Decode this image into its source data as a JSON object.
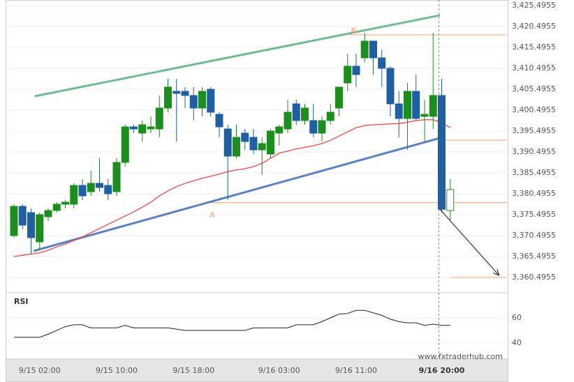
{
  "chart_data": {
    "type": "candlestick",
    "up_color": "#1b8f1b",
    "down_color": "#1f5fa3",
    "categories": [
      null,
      null,
      null,
      "9/15 02:00",
      null,
      null,
      null,
      null,
      null,
      null,
      null,
      null,
      "9/15 10:00",
      null,
      null,
      null,
      null,
      null,
      null,
      null,
      null,
      "9/15 18:00",
      null,
      null,
      null,
      null,
      null,
      null,
      null,
      null,
      null,
      "9/16 03:00",
      null,
      null,
      null,
      null,
      null,
      null,
      null,
      null,
      "9/16 11:00",
      null,
      null,
      null,
      null,
      null,
      null,
      null,
      null,
      null,
      "9/16 20:00",
      null
    ],
    "open": [
      3370.5,
      3377.5,
      3376,
      3369,
      3375,
      3376.5,
      3378,
      3378,
      3382.5,
      3381,
      3383,
      3382.5,
      3381,
      3388,
      3396.5,
      3395,
      3396,
      3396,
      3401,
      3405,
      3405,
      3404,
      3401,
      3405.5,
      3399.5,
      3396,
      3389.5,
      3395,
      3394,
      3391,
      3390,
      3395,
      3396,
      3402,
      3398,
      3398,
      3395,
      3398,
      3401,
      3407,
      3411,
      3413,
      3417,
      3413,
      3410.5,
      3402,
      3398.5,
      3405,
      3399,
      3399,
      3404,
      3376.5
    ],
    "high": [
      3378,
      3378,
      3377,
      3376,
      3377,
      3378.5,
      3379,
      3383,
      3384,
      3386,
      3389,
      3384,
      3389,
      3397,
      3397,
      3398,
      3399,
      3404,
      3408,
      3408,
      3406,
      3406,
      3406,
      3406,
      3400,
      3397,
      3397,
      3396,
      3396,
      3394,
      3396,
      3397,
      3403,
      3403,
      3402,
      3402,
      3399,
      3402,
      3406,
      3414,
      3414,
      3419,
      3417,
      3415,
      3411,
      3405,
      3407,
      3409,
      3403,
      3419,
      3408,
      3384
    ],
    "low": [
      3370,
      3372,
      3366,
      3367,
      3374,
      3376,
      3377,
      3377,
      3379,
      3380,
      3381,
      3379,
      3380,
      3387,
      3395,
      3393,
      3395,
      3394,
      3400,
      3393,
      3401,
      3398,
      3399,
      3399,
      3394,
      3379,
      3389,
      3391,
      3390,
      3385,
      3389,
      3392,
      3395,
      3397,
      3397,
      3394,
      3393,
      3397,
      3399,
      3405,
      3406,
      3412,
      3409,
      3406,
      3399,
      3394,
      3391,
      3398,
      3393,
      3396,
      3376,
      3374
    ],
    "close": [
      3377.5,
      3373,
      3370,
      3375.5,
      3376.5,
      3378,
      3378.5,
      3382.5,
      3380,
      3383,
      3382,
      3380.5,
      3388,
      3396.5,
      3396,
      3397,
      3396.5,
      3401,
      3406,
      3404.5,
      3404,
      3401,
      3405,
      3400,
      3396.5,
      3389.5,
      3394,
      3393,
      3391,
      3392.5,
      3395.5,
      3396.5,
      3400,
      3398,
      3401,
      3395,
      3398,
      3400,
      3406,
      3411,
      3409,
      3417,
      3413,
      3410.5,
      3402,
      3398.5,
      3405,
      3398.5,
      3399.5,
      3404,
      3376.8,
      3381.5
    ],
    "ma": {
      "color": "#e84a4a",
      "values": [
        3365.5,
        3365.8,
        3366.1,
        3366.4,
        3367,
        3367.8,
        3368.5,
        3369.3,
        3370.2,
        3371.2,
        3372.2,
        3373.2,
        3374.2,
        3375.2,
        3376.2,
        3377.3,
        3378.5,
        3380,
        3381.2,
        3382.2,
        3383,
        3383.6,
        3384.2,
        3384.7,
        3385.2,
        3385.8,
        3386.2,
        3386.5,
        3387,
        3387.8,
        3389,
        3390.2,
        3390.7,
        3391.2,
        3391.6,
        3392,
        3392.5,
        3393.3,
        3394.3,
        3395.3,
        3396.3,
        3396.8,
        3397,
        3397.1,
        3397.2,
        3397.3,
        3397.6,
        3398,
        3398.2,
        3398.2,
        3397.5,
        3396.3
      ]
    },
    "trend_lines": [
      {
        "color": "#6dbb8f",
        "x": [
          2.45,
          49.8
        ],
        "values": [
          3403.83,
          3423.17
        ]
      },
      {
        "color": "#5b82c0",
        "x": [
          2.3,
          49.8
        ],
        "values": [
          3366.83,
          3393.83
        ]
      }
    ],
    "levels": [
      {
        "color": "#f0a070",
        "from": 39.2,
        "value": 3418.5
      },
      {
        "color": "#f0a070",
        "from": 22.9,
        "value": 3378.4
      },
      {
        "color": "#f0a070",
        "from": 49.8,
        "value": 3393.3
      },
      {
        "color": "#f0a070",
        "from": 51,
        "value": 3360.5
      }
    ],
    "arrow": {
      "color": "#333",
      "x": [
        49.8,
        56.7
      ],
      "values": [
        3376.8,
        3361
      ]
    },
    "points": [
      {
        "label": "A",
        "x": 23.2,
        "value": 3376.3
      },
      {
        "label": "B",
        "x": 39.7,
        "value": 3420.3
      }
    ],
    "ylim": [
      3356.83,
      3426.83
    ],
    "yticks": [
      {
        "value": 3360.4955,
        "label": "3,360.4955"
      },
      {
        "value": 3365.4955,
        "label": "3,365.4955"
      },
      {
        "value": 3370.4955,
        "label": "3,370.4955"
      },
      {
        "value": 3375.4955,
        "label": "3,375.4955"
      },
      {
        "value": 3380.4955,
        "label": "3,380.4955"
      },
      {
        "value": 3385.4955,
        "label": "3,385.4955"
      },
      {
        "value": 3390.4955,
        "label": "3,390.4955"
      },
      {
        "value": 3395.4955,
        "label": "3,395.4955"
      },
      {
        "value": 3400.4955,
        "label": "3,400.4955"
      },
      {
        "value": 3405.4955,
        "label": "3,405.4955"
      },
      {
        "value": 3410.4955,
        "label": "3,410.4955"
      },
      {
        "value": 3415.4955,
        "label": "3,415.4955"
      },
      {
        "value": 3420.4955,
        "label": "3,420.4955"
      },
      {
        "value": 3425.4955,
        "label": "3,425.4955"
      }
    ],
    "rsi": {
      "label": "RSI",
      "color": "#222",
      "values": [
        44.5,
        44.5,
        44.5,
        44.5,
        47,
        50,
        53,
        54.5,
        54.5,
        52,
        52,
        52,
        52,
        54,
        52,
        52,
        52,
        52,
        52,
        51,
        50,
        50,
        50,
        50,
        50,
        50,
        50,
        50,
        52,
        52,
        52,
        52,
        52,
        54.5,
        54.5,
        54.5,
        57,
        60,
        63,
        63.5,
        66,
        66,
        64,
        62,
        59,
        57,
        56,
        56,
        54,
        55,
        54,
        54
      ],
      "ylim": [
        27.2,
        80
      ],
      "yticks": [
        40,
        60
      ]
    },
    "watermark": "www.fxtraderhub.com"
  }
}
